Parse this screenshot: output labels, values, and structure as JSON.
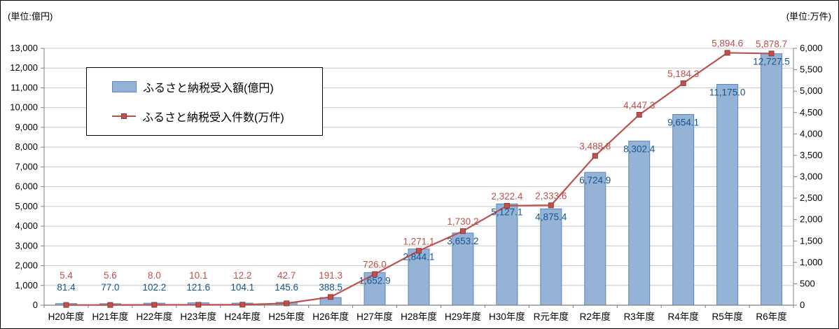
{
  "chart_data": {
    "type": "combo-bar-line",
    "title": "",
    "categories": [
      "H20年度",
      "H21年度",
      "H22年度",
      "H23年度",
      "H24年度",
      "H25年度",
      "H26年度",
      "H27年度",
      "H28年度",
      "H29年度",
      "H30年度",
      "R元年度",
      "R2年度",
      "R3年度",
      "R4年度",
      "R5年度",
      "R6年度"
    ],
    "series": [
      {
        "name": "ふるさと納税受入額(億円)",
        "type": "bar",
        "axis": "left",
        "color": "#95b3d7",
        "border_color": "#5a86b8",
        "label_color": "#17548a",
        "values": [
          81.4,
          77.0,
          102.2,
          121.6,
          104.1,
          145.6,
          388.5,
          1652.9,
          2844.1,
          3653.2,
          5127.1,
          4875.4,
          6724.9,
          8302.4,
          9654.1,
          11175.0,
          12727.5
        ],
        "labels": [
          "81.4",
          "77.0",
          "102.2",
          "121.6",
          "104.1",
          "145.6",
          "388.5",
          "1,652.9",
          "2,844.1",
          "3,653.2",
          "5,127.1",
          "4,875.4",
          "6,724.9",
          "8,302.4",
          "9,654.1",
          "11,175.0",
          "12,727.5"
        ]
      },
      {
        "name": "ふるさと納税受入件数(万件)",
        "type": "line",
        "axis": "right",
        "color": "#c0504d",
        "marker_border_color": "#8e3b38",
        "label_color": "#c0504d",
        "values": [
          5.4,
          5.6,
          8.0,
          10.1,
          12.2,
          42.7,
          191.3,
          726.0,
          1271.1,
          1730.2,
          2322.4,
          2333.6,
          3488.8,
          4447.3,
          5184.3,
          5894.6,
          5878.7
        ],
        "labels": [
          "5.4",
          "5.6",
          "8.0",
          "10.1",
          "12.2",
          "42.7",
          "191.3",
          "726.0",
          "1,271.1",
          "1,730.2",
          "2,322.4",
          "2,333.6",
          "3,488.8",
          "4,447.3",
          "5,184.3",
          "5,894.6",
          "5,878.7"
        ]
      }
    ],
    "left_axis": {
      "unit_label": "(単位:億円)",
      "min": 0,
      "max": 13000,
      "step": 1000,
      "ticks": [
        "0",
        "1,000",
        "2,000",
        "3,000",
        "4,000",
        "5,000",
        "6,000",
        "7,000",
        "8,000",
        "9,000",
        "10,000",
        "11,000",
        "12,000",
        "13,000"
      ]
    },
    "right_axis": {
      "unit_label": "(単位:万件)",
      "min": 0,
      "max": 6000,
      "step": 500,
      "ticks": [
        "0",
        "500",
        "1,000",
        "1,500",
        "2,000",
        "2,500",
        "3,000",
        "3,500",
        "4,000",
        "4,500",
        "5,000",
        "5,500",
        "6,000"
      ]
    },
    "grid": true,
    "gridline_color": "#c8c8c8",
    "axis_line_color": "#808080",
    "legend_position": "top-left-inside"
  }
}
